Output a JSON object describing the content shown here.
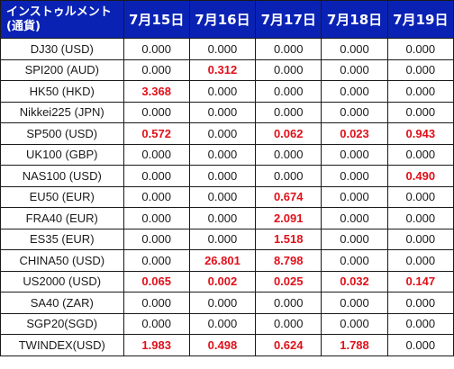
{
  "table": {
    "header": {
      "instrument_line1": "インストゥルメント",
      "instrument_line2": "(通貨)",
      "dates": [
        "7月15日",
        "7月16日",
        "7月17日",
        "7月18日",
        "7月19日"
      ]
    },
    "rows": [
      {
        "name": "DJ30 (USD)",
        "values": [
          "0.000",
          "0.000",
          "0.000",
          "0.000",
          "0.000"
        ]
      },
      {
        "name": "SPI200 (AUD)",
        "values": [
          "0.000",
          "0.312",
          "0.000",
          "0.000",
          "0.000"
        ]
      },
      {
        "name": "HK50 (HKD)",
        "values": [
          "3.368",
          "0.000",
          "0.000",
          "0.000",
          "0.000"
        ]
      },
      {
        "name": "Nikkei225 (JPN)",
        "values": [
          "0.000",
          "0.000",
          "0.000",
          "0.000",
          "0.000"
        ]
      },
      {
        "name": "SP500 (USD)",
        "values": [
          "0.572",
          "0.000",
          "0.062",
          "0.023",
          "0.943"
        ]
      },
      {
        "name": "UK100 (GBP)",
        "values": [
          "0.000",
          "0.000",
          "0.000",
          "0.000",
          "0.000"
        ]
      },
      {
        "name": "NAS100 (USD)",
        "values": [
          "0.000",
          "0.000",
          "0.000",
          "0.000",
          "0.490"
        ]
      },
      {
        "name": "EU50 (EUR)",
        "values": [
          "0.000",
          "0.000",
          "0.674",
          "0.000",
          "0.000"
        ]
      },
      {
        "name": "FRA40 (EUR)",
        "values": [
          "0.000",
          "0.000",
          "2.091",
          "0.000",
          "0.000"
        ]
      },
      {
        "name": "ES35 (EUR)",
        "values": [
          "0.000",
          "0.000",
          "1.518",
          "0.000",
          "0.000"
        ]
      },
      {
        "name": "CHINA50 (USD)",
        "values": [
          "0.000",
          "26.801",
          "8.798",
          "0.000",
          "0.000"
        ]
      },
      {
        "name": "US2000 (USD)",
        "values": [
          "0.065",
          "0.002",
          "0.025",
          "0.032",
          "0.147"
        ]
      },
      {
        "name": "SA40 (ZAR)",
        "values": [
          "0.000",
          "0.000",
          "0.000",
          "0.000",
          "0.000"
        ]
      },
      {
        "name": "SGP20(SGD)",
        "values": [
          "0.000",
          "0.000",
          "0.000",
          "0.000",
          "0.000"
        ]
      },
      {
        "name": "TWINDEX(USD)",
        "values": [
          "1.983",
          "0.498",
          "0.624",
          "1.788",
          "0.000"
        ]
      }
    ]
  },
  "colors": {
    "header_background": "#0a22b4",
    "header_text": "#ffffff",
    "positive_value": "#e0101a",
    "zero_value": "#1a1a1a",
    "border": "#1a1a1a"
  }
}
